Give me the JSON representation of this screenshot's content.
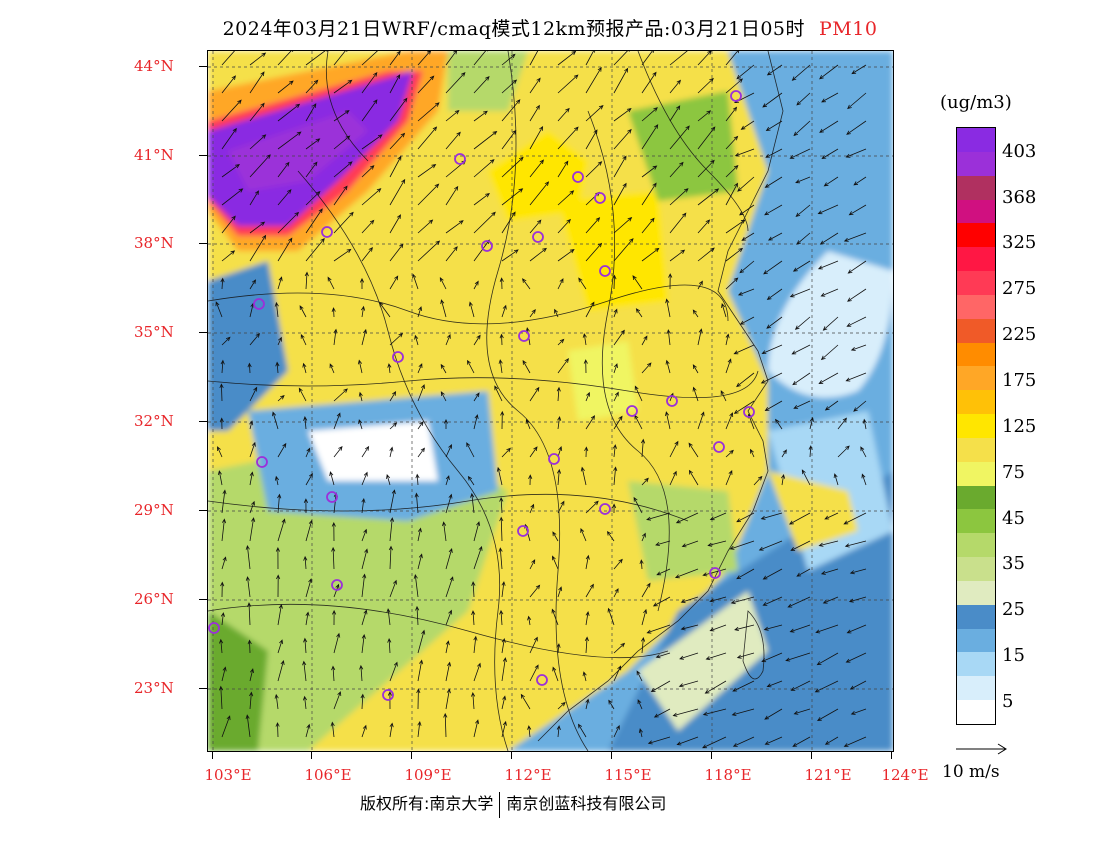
{
  "title": {
    "main": "2024年03月21日WRF/cmaq模式12km预报产品:03月21日05时",
    "species": "PM10"
  },
  "map": {
    "lat_labels": [
      "44°N",
      "41°N",
      "38°N",
      "35°N",
      "32°N",
      "29°N",
      "26°N",
      "23°N"
    ],
    "lon_labels": [
      "103°E",
      "106°E",
      "109°E",
      "112°E",
      "115°E",
      "118°E",
      "121°E",
      "124°E"
    ]
  },
  "colorbar": {
    "unit": "(ug/m3)",
    "levels": [
      "403",
      "368",
      "325",
      "275",
      "225",
      "175",
      "125",
      "75",
      "45",
      "35",
      "25",
      "15",
      "5"
    ],
    "colors": [
      "#8a2be2",
      "#9b30d9",
      "#b03060",
      "#d01080",
      "#ff0000",
      "#ff1744",
      "#ff3a55",
      "#ff6666",
      "#f05a28",
      "#ff8c00",
      "#ffa726",
      "#ffc107",
      "#ffe600",
      "#f5e04a",
      "#f0f562",
      "#6aaa2e",
      "#8cc63f",
      "#b5d96a",
      "#c9e08c",
      "#e0ebc0",
      "#4a8cc8",
      "#6aaee0",
      "#a8d8f5",
      "#d8eefb",
      "#ffffff"
    ]
  },
  "wind_reference": {
    "label": "10 m/s"
  },
  "footer": {
    "copyright": "版权所有:南京大学",
    "company": "南京创蓝科技有限公司"
  }
}
